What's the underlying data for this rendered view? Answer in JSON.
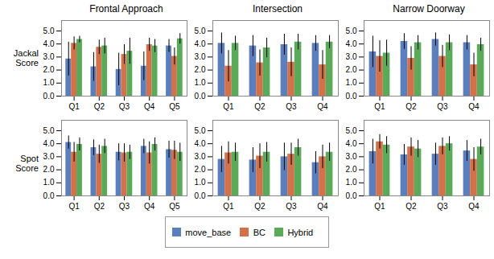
{
  "chart_data": [
    {
      "type": "bar",
      "title": "Frontal Approach",
      "ylabel": "Jackal\nScore",
      "legend": "bottom",
      "categories": [
        "Q1",
        "Q2",
        "Q3",
        "Q4",
        "Q5"
      ],
      "series": [
        {
          "name": "move_base",
          "color": "#5b7fbd",
          "values": [
            2.85,
            2.25,
            2.05,
            2.3,
            3.85
          ],
          "errors": [
            1.3,
            1.1,
            1.25,
            1.1,
            0.5
          ]
        },
        {
          "name": "BC",
          "color": "#d2714a",
          "values": [
            4.05,
            3.75,
            3.2,
            3.95,
            3.05
          ],
          "errors": [
            0.5,
            0.55,
            0.75,
            0.5,
            0.65
          ]
        },
        {
          "name": "Hybrid",
          "color": "#5aaa5a",
          "values": [
            4.35,
            3.85,
            3.45,
            3.85,
            4.4
          ],
          "errors": [
            0.25,
            0.6,
            1.0,
            0.5,
            0.4
          ]
        }
      ],
      "ylim": [
        0,
        5.8
      ],
      "yticks": [
        0,
        1,
        2,
        3,
        4,
        5
      ]
    },
    {
      "type": "bar",
      "title": "Intersection",
      "legend": "bottom",
      "categories": [
        "Q1",
        "Q2",
        "Q3",
        "Q4"
      ],
      "series": [
        {
          "name": "move_base",
          "color": "#5b7fbd",
          "values": [
            4.05,
            3.85,
            3.95,
            4.05
          ],
          "errors": [
            0.8,
            0.8,
            0.8,
            0.6
          ]
        },
        {
          "name": "BC",
          "color": "#d2714a",
          "values": [
            2.3,
            2.55,
            2.6,
            2.4
          ],
          "errors": [
            1.2,
            1.0,
            1.1,
            1.1
          ]
        },
        {
          "name": "Hybrid",
          "color": "#5aaa5a",
          "values": [
            4.05,
            3.7,
            4.15,
            4.15
          ],
          "errors": [
            0.55,
            0.75,
            0.6,
            0.5
          ]
        }
      ],
      "ylim": [
        0,
        5.8
      ],
      "yticks": [
        0,
        1,
        2,
        3,
        4,
        5
      ]
    },
    {
      "type": "bar",
      "title": "Narrow Doorway",
      "legend": "bottom",
      "categories": [
        "Q1",
        "Q2",
        "Q3",
        "Q4"
      ],
      "series": [
        {
          "name": "move_base",
          "color": "#5b7fbd",
          "values": [
            3.4,
            4.2,
            4.35,
            4.1
          ],
          "errors": [
            1.2,
            0.6,
            0.5,
            0.55
          ]
        },
        {
          "name": "BC",
          "color": "#d2714a",
          "values": [
            3.05,
            2.9,
            3.05,
            2.4
          ],
          "errors": [
            1.2,
            0.9,
            0.85,
            0.9
          ]
        },
        {
          "name": "Hybrid",
          "color": "#5aaa5a",
          "values": [
            3.3,
            4.1,
            4.1,
            3.95
          ],
          "errors": [
            1.0,
            0.55,
            0.6,
            0.5
          ]
        }
      ],
      "ylim": [
        0,
        5.8
      ],
      "yticks": [
        0,
        1,
        2,
        3,
        4,
        5
      ]
    },
    {
      "type": "bar",
      "ylabel": "Spot\nScore",
      "legend": "bottom",
      "categories": [
        "Q1",
        "Q2",
        "Q3",
        "Q4",
        "Q5"
      ],
      "series": [
        {
          "name": "move_base",
          "color": "#5b7fbd",
          "values": [
            4.1,
            3.7,
            3.35,
            3.8,
            3.55
          ],
          "errors": [
            0.5,
            0.6,
            0.65,
            0.55,
            0.65
          ]
        },
        {
          "name": "BC",
          "color": "#d2714a",
          "values": [
            3.35,
            3.2,
            3.3,
            3.3,
            3.5
          ],
          "errors": [
            0.75,
            0.7,
            0.7,
            0.85,
            0.7
          ]
        },
        {
          "name": "Hybrid",
          "color": "#5aaa5a",
          "values": [
            3.95,
            3.8,
            3.35,
            3.95,
            3.35
          ],
          "errors": [
            0.5,
            0.55,
            0.55,
            0.5,
            0.7
          ]
        }
      ],
      "ylim": [
        0,
        5.8
      ],
      "yticks": [
        0,
        1,
        2,
        3,
        4,
        5
      ]
    },
    {
      "type": "bar",
      "legend": "bottom",
      "categories": [
        "Q1",
        "Q2",
        "Q3",
        "Q4"
      ],
      "series": [
        {
          "name": "move_base",
          "color": "#5b7fbd",
          "values": [
            2.8,
            2.75,
            3.0,
            2.55
          ],
          "errors": [
            1.0,
            0.95,
            1.05,
            0.85
          ]
        },
        {
          "name": "BC",
          "color": "#d2714a",
          "values": [
            3.3,
            3.05,
            3.2,
            3.0
          ],
          "errors": [
            0.85,
            0.95,
            0.85,
            0.9
          ]
        },
        {
          "name": "Hybrid",
          "color": "#5aaa5a",
          "values": [
            3.35,
            3.35,
            3.7,
            3.35
          ],
          "errors": [
            0.7,
            0.75,
            0.65,
            0.7
          ]
        }
      ],
      "ylim": [
        0,
        5.8
      ],
      "yticks": [
        0,
        1,
        2,
        3,
        4,
        5
      ]
    },
    {
      "type": "bar",
      "legend": "bottom",
      "categories": [
        "Q1",
        "Q2",
        "Q3",
        "Q4"
      ],
      "series": [
        {
          "name": "move_base",
          "color": "#5b7fbd",
          "values": [
            3.4,
            3.15,
            3.2,
            3.45
          ],
          "errors": [
            0.95,
            0.8,
            0.85,
            0.8
          ]
        },
        {
          "name": "BC",
          "color": "#d2714a",
          "values": [
            4.15,
            3.75,
            3.8,
            2.8
          ],
          "errors": [
            0.55,
            0.7,
            0.65,
            0.9
          ]
        },
        {
          "name": "Hybrid",
          "color": "#5aaa5a",
          "values": [
            3.9,
            3.6,
            4.0,
            3.75
          ],
          "errors": [
            0.65,
            0.65,
            0.55,
            0.6
          ]
        }
      ],
      "ylim": [
        0,
        5.8
      ],
      "yticks": [
        0,
        1,
        2,
        3,
        4,
        5
      ]
    }
  ]
}
